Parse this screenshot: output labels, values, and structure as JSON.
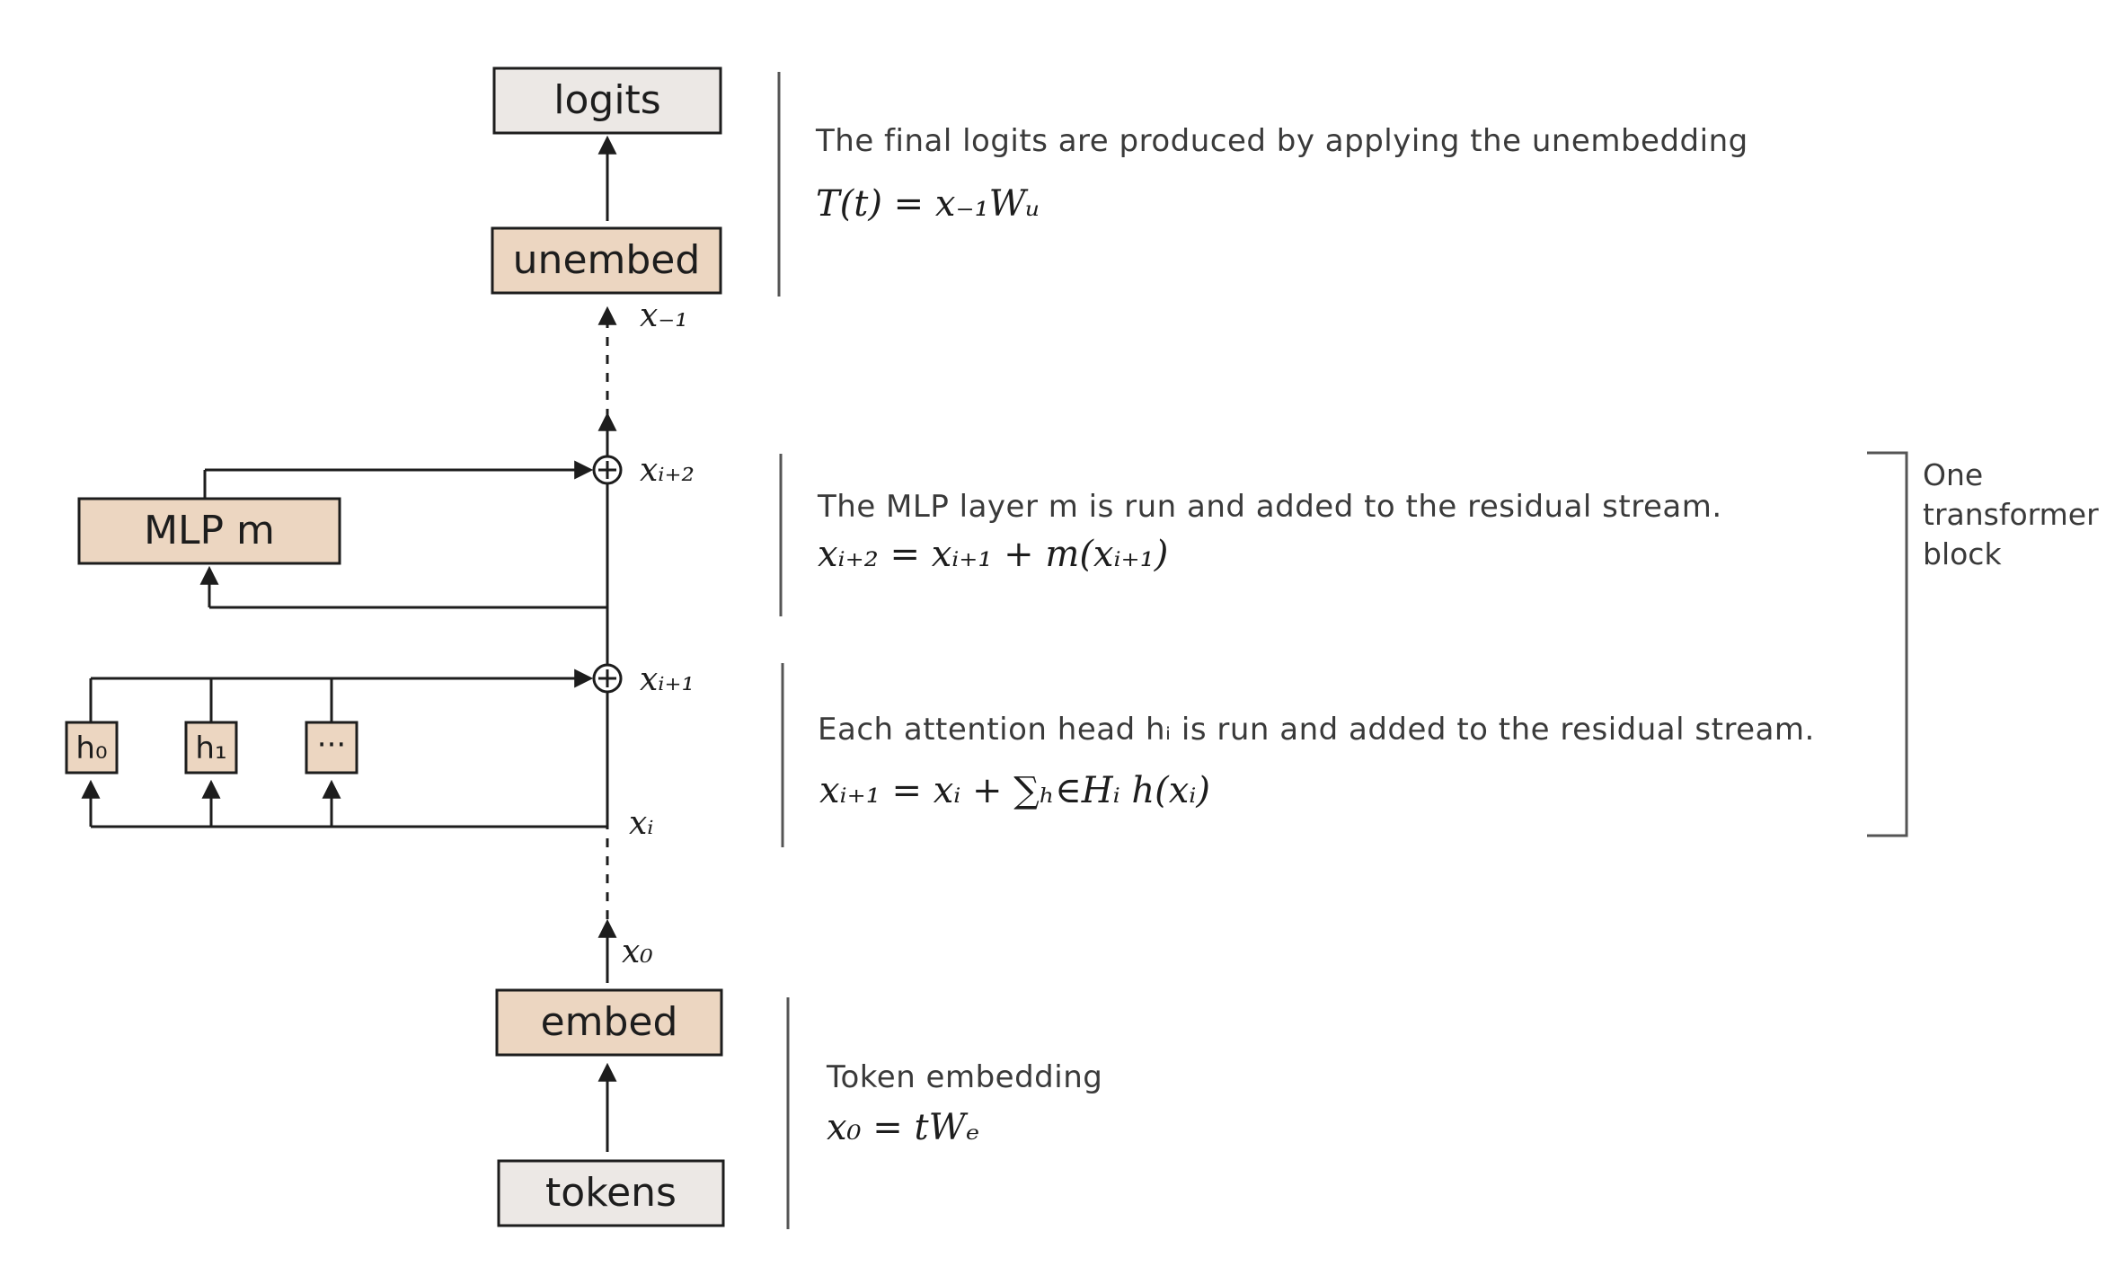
{
  "boxes": {
    "logits": "logits",
    "unembed": "unembed",
    "mlp": "MLP  m",
    "embed": "embed",
    "tokens": "tokens",
    "head0": "h₀",
    "head1": "h₁",
    "head_more": "···"
  },
  "variables": {
    "x_neg1": "x₋₁",
    "x_i2": "xᵢ₊₂",
    "x_i1": "xᵢ₊₁",
    "x_i": "xᵢ",
    "x_0": "x₀"
  },
  "annotations": {
    "unembed": {
      "description": "The final logits are produced by applying the unembedding",
      "formula": "T(t)  =  x₋₁Wᵤ"
    },
    "mlp": {
      "description": "The MLP layer m is run and added to the residual stream.",
      "formula": "xᵢ₊₂ =  xᵢ₊₁  +  m(xᵢ₊₁)"
    },
    "attention": {
      "description": "Each attention head hᵢ is run and added to the residual stream.",
      "formula": "xᵢ₊₁  =  xᵢ + ∑ₕ∈Hᵢ h(xᵢ)"
    },
    "embed": {
      "description": "Token embedding",
      "formula": "x₀  =  tWₑ"
    }
  },
  "block_label": [
    "One",
    "transformer",
    "block"
  ],
  "colors": {
    "box_fill_gray": "#ece8e5",
    "box_fill_tan": "#ecd6c1",
    "stroke": "#1d1d1d",
    "bracket": "#555555"
  }
}
